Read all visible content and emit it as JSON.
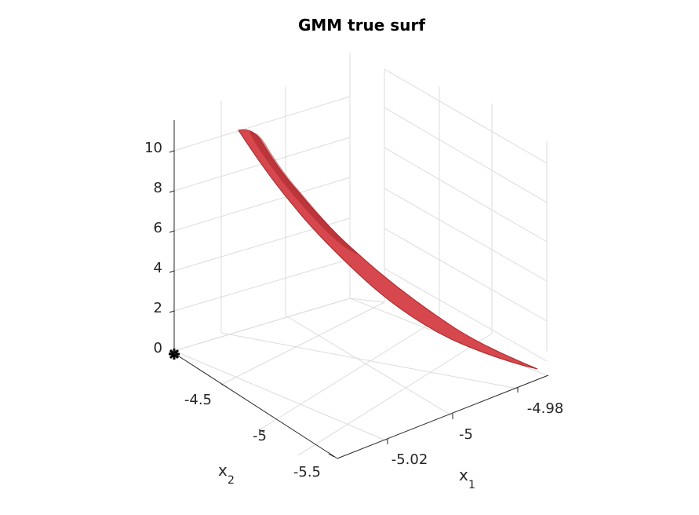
{
  "chart_data": {
    "type": "surface",
    "title": "GMM true surf",
    "xlabel": {
      "base": "x",
      "sub": "1"
    },
    "ylabel": {
      "base": "x",
      "sub": "2"
    },
    "zlabel": "",
    "x_ticks": [
      "-5.02",
      "-5",
      "-4.98"
    ],
    "y_ticks": [
      "-4.5",
      "-5",
      "-5.5"
    ],
    "z_ticks": [
      "0",
      "2",
      "4",
      "6",
      "8",
      "10"
    ],
    "xlim": [
      -5.03,
      -4.97
    ],
    "ylim": [
      -5.8,
      -4.2
    ],
    "zlim": [
      0,
      11
    ],
    "grid": true,
    "surface_color": "#d6484d",
    "surface_edge_color": "#a8262b",
    "marker_color": "#000000",
    "marker": {
      "x": -5.03,
      "y": -4.2,
      "z": 0
    }
  }
}
